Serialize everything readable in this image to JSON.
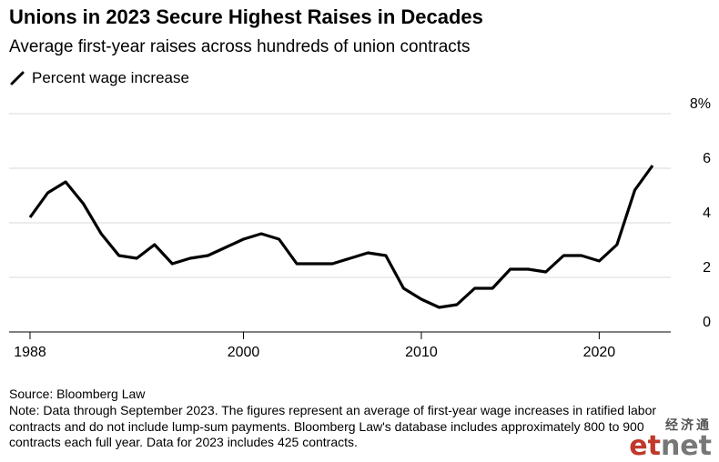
{
  "header": {
    "title": "Unions in 2023 Secure Highest Raises in Decades",
    "subtitle": "Average first-year raises across hundreds of union contracts"
  },
  "legend": {
    "label": "Percent wage increase"
  },
  "footer": {
    "source": "Source: Bloomberg Law",
    "note": "Note: Data through September 2023. The figures represent an average of first-year wage increases in ratified labor contracts and do not include lump-sum payments. Bloomberg Law's database includes approximately 800 to 900 contracts each full year. Data for 2023 includes 425 contracts."
  },
  "watermark": {
    "cn": "经济通",
    "en_red": "et",
    "en_gray": "net"
  },
  "chart_data": {
    "type": "line",
    "title": "Unions in 2023 Secure Highest Raises in Decades",
    "subtitle": "Average first-year raises across hundreds of union contracts",
    "xlabel": "",
    "ylabel": "",
    "xlim": [
      1988,
      2023
    ],
    "ylim": [
      0,
      8
    ],
    "x_ticks": [
      1988,
      2000,
      2010,
      2020
    ],
    "y_ticks": [
      0,
      2,
      4,
      6,
      8
    ],
    "y_tick_labels": [
      "0",
      "2",
      "4",
      "6",
      "8%"
    ],
    "grid": "horizontal",
    "legend_position": "top-left",
    "colors": {
      "line": "#000000",
      "grid": "#d9d9d9",
      "axis": "#000000"
    },
    "series": [
      {
        "name": "Percent wage increase",
        "x": [
          1988,
          1989,
          1990,
          1991,
          1992,
          1993,
          1994,
          1995,
          1996,
          1997,
          1998,
          1999,
          2000,
          2001,
          2002,
          2003,
          2004,
          2005,
          2006,
          2007,
          2008,
          2009,
          2010,
          2011,
          2012,
          2013,
          2014,
          2015,
          2016,
          2017,
          2018,
          2019,
          2020,
          2021,
          2022,
          2023
        ],
        "values": [
          4.2,
          5.1,
          5.5,
          4.7,
          3.6,
          2.8,
          2.7,
          3.2,
          2.5,
          2.7,
          2.8,
          3.1,
          3.4,
          3.6,
          3.4,
          2.5,
          2.5,
          2.5,
          2.7,
          2.9,
          2.8,
          1.6,
          1.2,
          0.9,
          1.0,
          1.6,
          1.6,
          2.3,
          2.3,
          2.2,
          2.8,
          2.8,
          2.6,
          3.2,
          5.2,
          6.1
        ]
      }
    ]
  }
}
